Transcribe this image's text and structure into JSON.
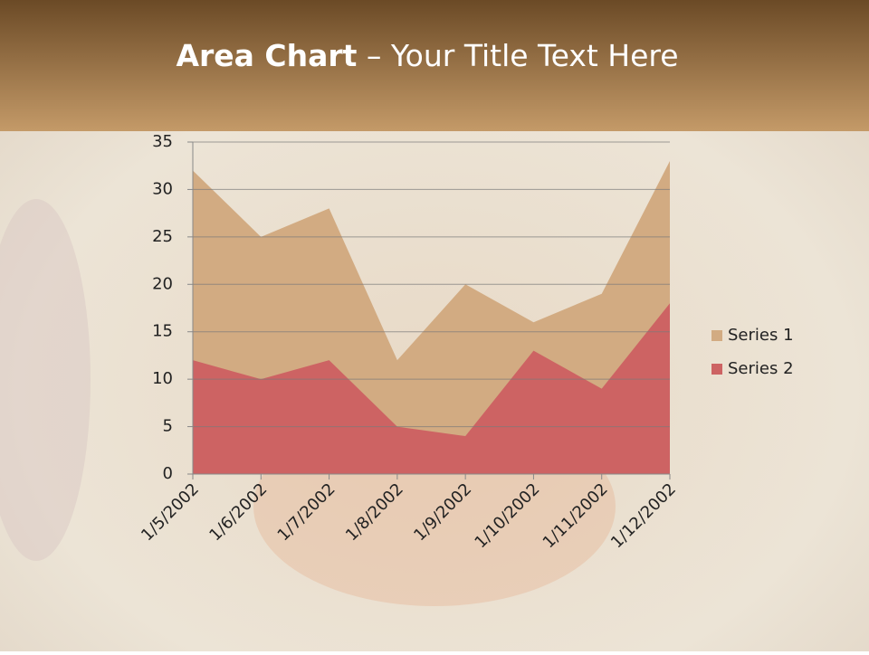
{
  "chart_data": {
    "type": "area",
    "title": [
      "Area Chart",
      "– Your Title Text Here"
    ],
    "categories": [
      "1/5/2002",
      "1/6/2002",
      "1/7/2002",
      "1/8/2002",
      "1/9/2002",
      "1/10/2002",
      "1/11/2002",
      "1/12/2002"
    ],
    "series": [
      {
        "name": "Series 1",
        "color": "#d2ab82",
        "values": [
          32,
          25,
          28,
          12,
          20,
          16,
          19,
          33
        ]
      },
      {
        "name": "Series 2",
        "color": "#cd6363",
        "values": [
          12,
          10,
          12,
          5,
          4,
          13,
          9,
          18
        ]
      }
    ],
    "ylim": [
      0,
      35
    ],
    "yticks": [
      0,
      5,
      10,
      15,
      20,
      25,
      30,
      35
    ],
    "grid": true,
    "legend": "right"
  }
}
